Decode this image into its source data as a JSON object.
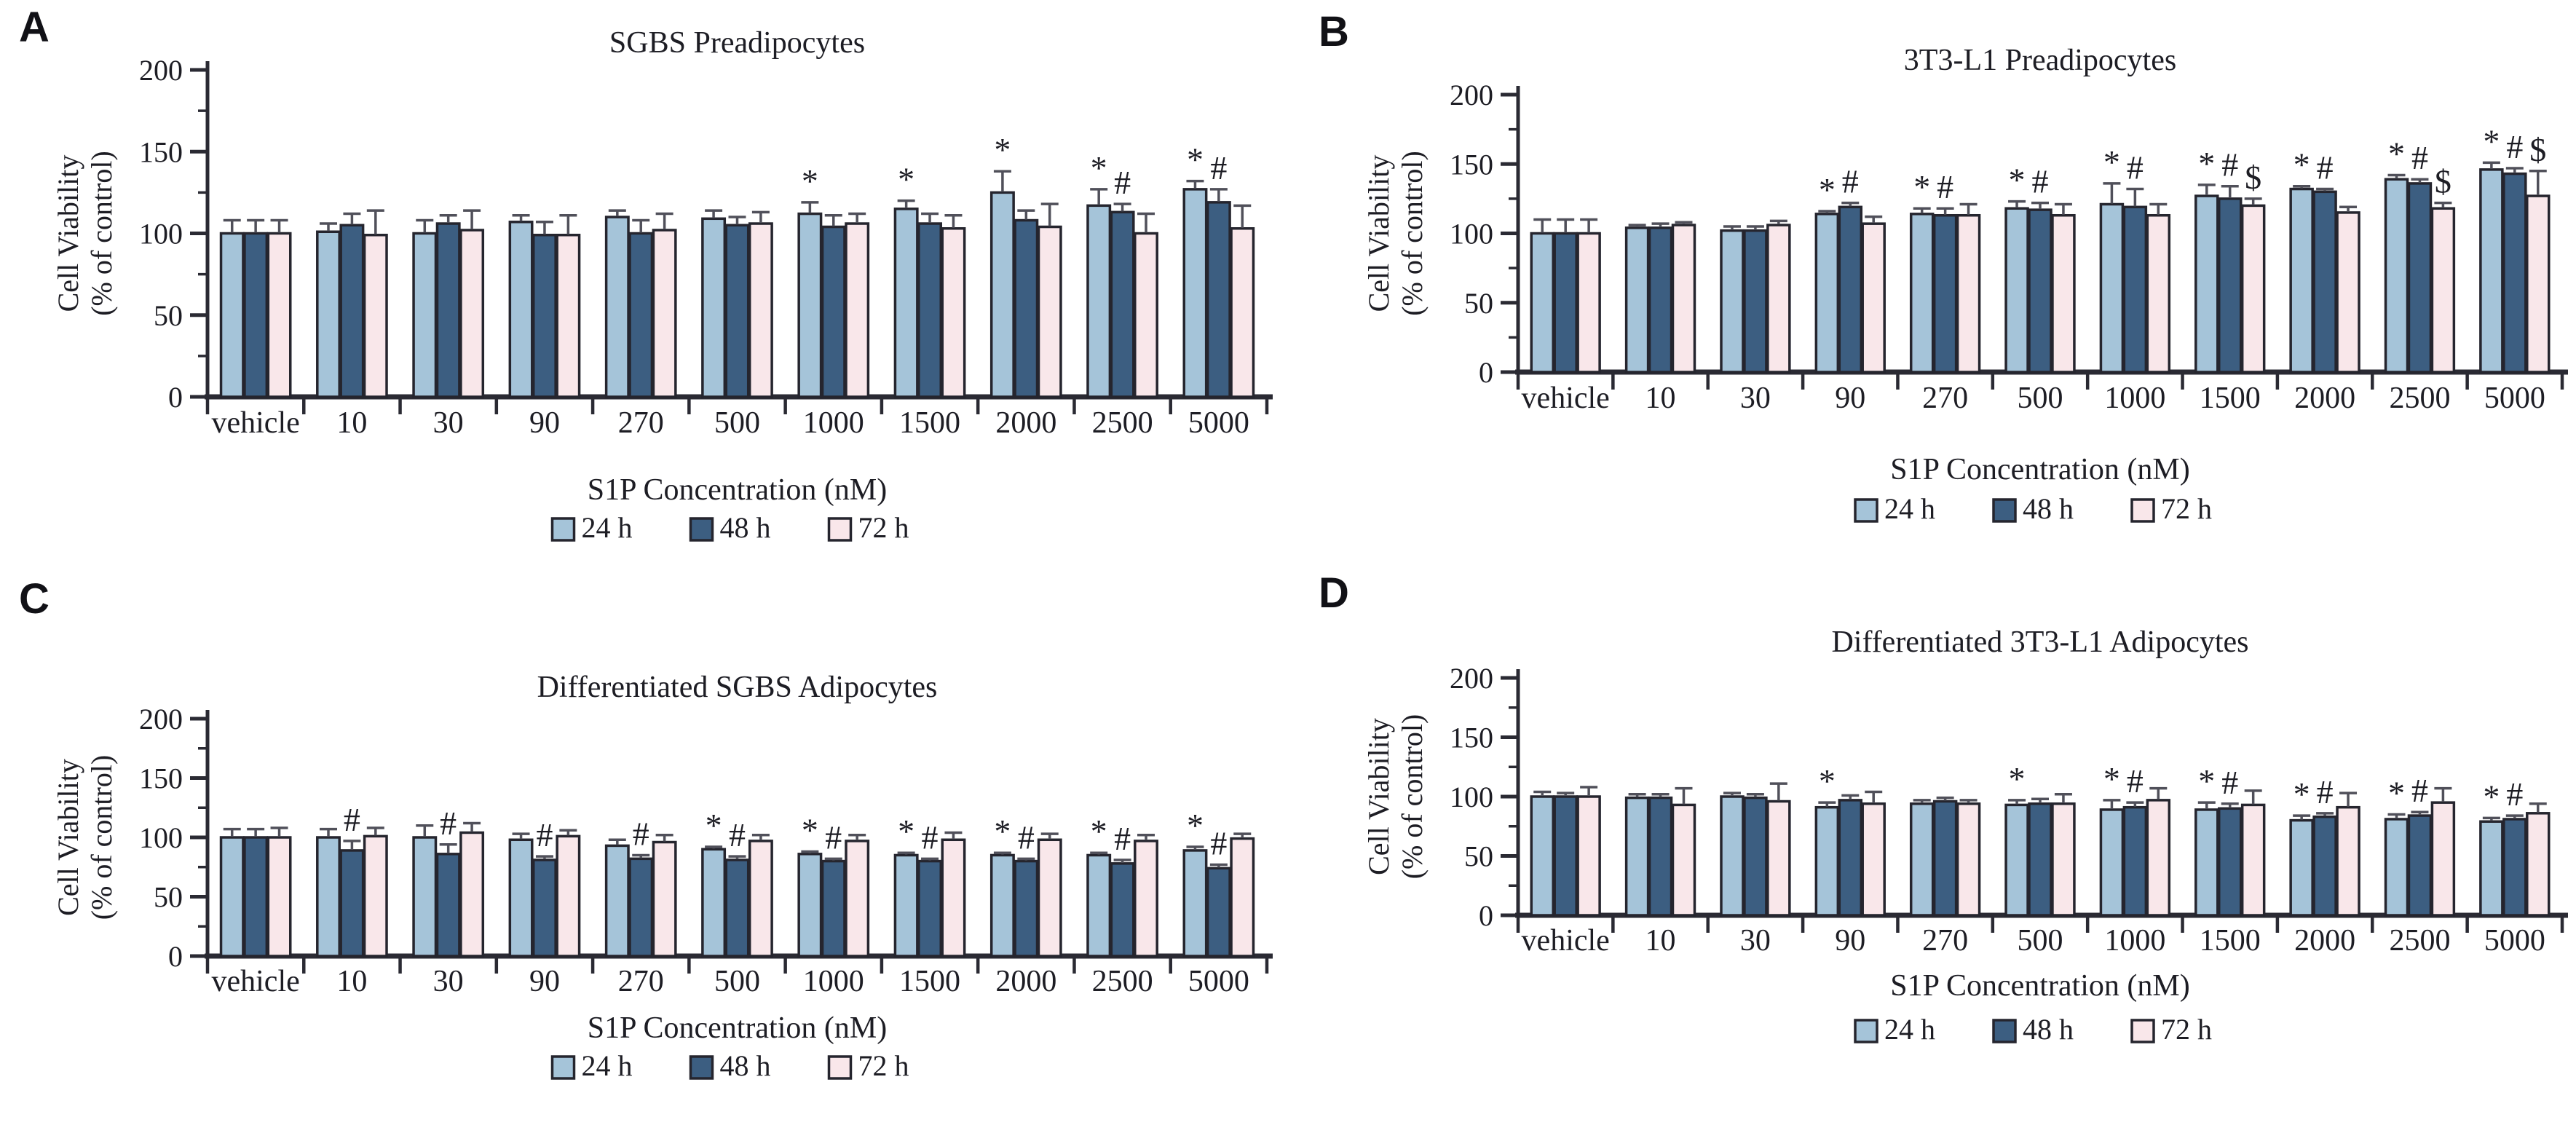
{
  "figure": {
    "background": "#ffffff",
    "styling": {
      "bar_outline": "#25252e",
      "axis_color": "#2a2a33",
      "error_bar_color": "#50505a",
      "text_color": "#1d1d24",
      "series_colors": {
        "24h": "#a5c4d9",
        "48h": "#3c5e81",
        "72h": "#f9e7ea"
      }
    }
  },
  "chart_data": [
    {
      "panel_label": "A",
      "type": "bar",
      "title": "SGBS Preadipocytes",
      "ylabel_line1": "Cell Viability",
      "ylabel_line2": "(% of control)",
      "xlabel": "S1P Concentration (nM)",
      "ylim": [
        0,
        200
      ],
      "yticks": [
        "0",
        "50",
        "100",
        "150",
        "200"
      ],
      "grid": false,
      "legend_position": "bottom",
      "legend": [
        "24 h",
        "48 h",
        "72 h"
      ],
      "categories": [
        "vehicle",
        "10",
        "30",
        "90",
        "270",
        "500",
        "1000",
        "1500",
        "2000",
        "2500",
        "5000"
      ],
      "series": [
        {
          "name": "24 h",
          "color": "#a5c4d9",
          "values": [
            100,
            101,
            100,
            107,
            110,
            109,
            112,
            115,
            125,
            117,
            127
          ],
          "errors": [
            8,
            5,
            8,
            4,
            4,
            5,
            7,
            5,
            13,
            10,
            5
          ],
          "annotations": [
            "",
            "",
            "",
            "",
            "",
            "",
            "*",
            "*",
            "*",
            "*",
            "*"
          ]
        },
        {
          "name": "48 h",
          "color": "#3c5e81",
          "values": [
            100,
            105,
            106,
            99,
            100,
            105,
            104,
            106,
            108,
            113,
            119
          ],
          "errors": [
            8,
            7,
            5,
            8,
            8,
            5,
            7,
            6,
            6,
            5,
            8
          ],
          "annotations": [
            "",
            "",
            "",
            "",
            "",
            "",
            "",
            "",
            "",
            "#",
            "#"
          ]
        },
        {
          "name": "72 h",
          "color": "#f9e7ea",
          "values": [
            100,
            99,
            102,
            99,
            102,
            106,
            106,
            103,
            104,
            100,
            103
          ],
          "errors": [
            8,
            15,
            12,
            12,
            10,
            7,
            6,
            8,
            14,
            12,
            14
          ],
          "annotations": [
            "",
            "",
            "",
            "",
            "",
            "",
            "",
            "",
            "",
            "",
            ""
          ]
        }
      ]
    },
    {
      "panel_label": "B",
      "type": "bar",
      "title": "3T3-L1 Preadipocytes",
      "ylabel_line1": "Cell Viability",
      "ylabel_line2": "(% of control)",
      "xlabel": "S1P Concentration (nM)",
      "ylim": [
        0,
        200
      ],
      "yticks": [
        "0",
        "50",
        "100",
        "150",
        "200"
      ],
      "grid": false,
      "legend_position": "bottom",
      "legend": [
        "24 h",
        "48 h",
        "72 h"
      ],
      "categories": [
        "vehicle",
        "10",
        "30",
        "90",
        "270",
        "500",
        "1000",
        "1500",
        "2000",
        "2500",
        "5000"
      ],
      "series": [
        {
          "name": "24 h",
          "color": "#a5c4d9",
          "values": [
            100,
            104,
            102,
            114,
            114,
            118,
            121,
            127,
            132,
            139,
            146
          ],
          "errors": [
            10,
            2,
            3,
            2,
            4,
            5,
            15,
            8,
            2,
            3,
            5
          ],
          "annotations": [
            "",
            "",
            "",
            "*",
            "*",
            "*",
            "*",
            "*",
            "*",
            "*",
            "*"
          ]
        },
        {
          "name": "48 h",
          "color": "#3c5e81",
          "values": [
            100,
            104,
            102,
            119,
            113,
            117,
            119,
            125,
            130,
            136,
            143
          ],
          "errors": [
            10,
            3,
            3,
            3,
            5,
            5,
            13,
            9,
            2,
            3,
            4
          ],
          "annotations": [
            "",
            "",
            "",
            "#",
            "#",
            "#",
            "#",
            "#",
            "#",
            "#",
            "#"
          ]
        },
        {
          "name": "72 h",
          "color": "#f9e7ea",
          "values": [
            100,
            106,
            106,
            107,
            113,
            113,
            113,
            120,
            115,
            118,
            127
          ],
          "errors": [
            10,
            2,
            3,
            5,
            8,
            8,
            8,
            5,
            4,
            4,
            18
          ],
          "annotations": [
            "",
            "",
            "",
            "",
            "",
            "",
            "",
            "$",
            "",
            "$",
            "$"
          ]
        }
      ]
    },
    {
      "panel_label": "C",
      "type": "bar",
      "title": "Differentiated SGBS Adipocytes",
      "ylabel_line1": "Cell Viability",
      "ylabel_line2": "(% of control)",
      "xlabel": "S1P Concentration (nM)",
      "ylim": [
        0,
        200
      ],
      "yticks": [
        "0",
        "50",
        "100",
        "150",
        "200"
      ],
      "grid": false,
      "legend_position": "bottom",
      "legend": [
        "24 h",
        "48 h",
        "72 h"
      ],
      "categories": [
        "vehicle",
        "10",
        "30",
        "90",
        "270",
        "500",
        "1000",
        "1500",
        "2000",
        "2500",
        "5000"
      ],
      "series": [
        {
          "name": "24 h",
          "color": "#a5c4d9",
          "values": [
            100,
            100,
            100,
            98,
            93,
            90,
            86,
            85,
            85,
            85,
            89
          ],
          "errors": [
            7,
            7,
            10,
            5,
            5,
            2,
            2,
            2,
            2,
            2,
            3
          ],
          "annotations": [
            "",
            "",
            "",
            "",
            "",
            "*",
            "*",
            "*",
            "*",
            "*",
            "*"
          ]
        },
        {
          "name": "48 h",
          "color": "#3c5e81",
          "values": [
            100,
            89,
            86,
            81,
            82,
            81,
            80,
            80,
            80,
            78,
            74
          ],
          "errors": [
            7,
            8,
            8,
            3,
            3,
            3,
            2,
            2,
            2,
            3,
            3
          ],
          "annotations": [
            "",
            "#",
            "#",
            "#",
            "#",
            "#",
            "#",
            "#",
            "#",
            "#",
            "#"
          ]
        },
        {
          "name": "72 h",
          "color": "#f9e7ea",
          "values": [
            100,
            101,
            104,
            101,
            96,
            97,
            97,
            98,
            98,
            97,
            99
          ],
          "errors": [
            8,
            7,
            8,
            5,
            6,
            5,
            5,
            6,
            5,
            5,
            4
          ],
          "annotations": [
            "",
            "",
            "",
            "",
            "",
            "",
            "",
            "",
            "",
            "",
            ""
          ]
        }
      ]
    },
    {
      "panel_label": "D",
      "type": "bar",
      "title": "Differentiated 3T3-L1 Adipocytes",
      "ylabel_line1": "Cell Viability",
      "ylabel_line2": "(% of control)",
      "xlabel": "S1P Concentration (nM)",
      "ylim": [
        0,
        200
      ],
      "yticks": [
        "0",
        "50",
        "100",
        "150",
        "200"
      ],
      "grid": false,
      "legend_position": "bottom",
      "legend": [
        "24 h",
        "48 h",
        "72 h"
      ],
      "categories": [
        "vehicle",
        "10",
        "30",
        "90",
        "270",
        "500",
        "1000",
        "1500",
        "2000",
        "2500",
        "5000"
      ],
      "series": [
        {
          "name": "24 h",
          "color": "#a5c4d9",
          "values": [
            100,
            99,
            100,
            91,
            94,
            93,
            89,
            89,
            80,
            81,
            79
          ],
          "errors": [
            4,
            3,
            3,
            4,
            3,
            4,
            8,
            6,
            4,
            4,
            3
          ],
          "annotations": [
            "",
            "",
            "",
            "*",
            "",
            "*",
            "*",
            "*",
            "*",
            "*",
            "*"
          ]
        },
        {
          "name": "48 h",
          "color": "#3c5e81",
          "values": [
            100,
            99,
            99,
            97,
            96,
            94,
            91,
            90,
            83,
            84,
            81
          ],
          "errors": [
            3,
            3,
            3,
            4,
            3,
            4,
            4,
            4,
            3,
            3,
            3
          ],
          "annotations": [
            "",
            "",
            "",
            "",
            "",
            "",
            "#",
            "#",
            "#",
            "#",
            "#"
          ]
        },
        {
          "name": "72 h",
          "color": "#f9e7ea",
          "values": [
            100,
            93,
            96,
            94,
            94,
            94,
            97,
            93,
            91,
            95,
            86
          ],
          "errors": [
            8,
            14,
            15,
            10,
            3,
            8,
            10,
            12,
            12,
            12,
            8
          ],
          "annotations": [
            "",
            "",
            "",
            "",
            "",
            "",
            "",
            "",
            "",
            "",
            ""
          ]
        }
      ]
    }
  ]
}
